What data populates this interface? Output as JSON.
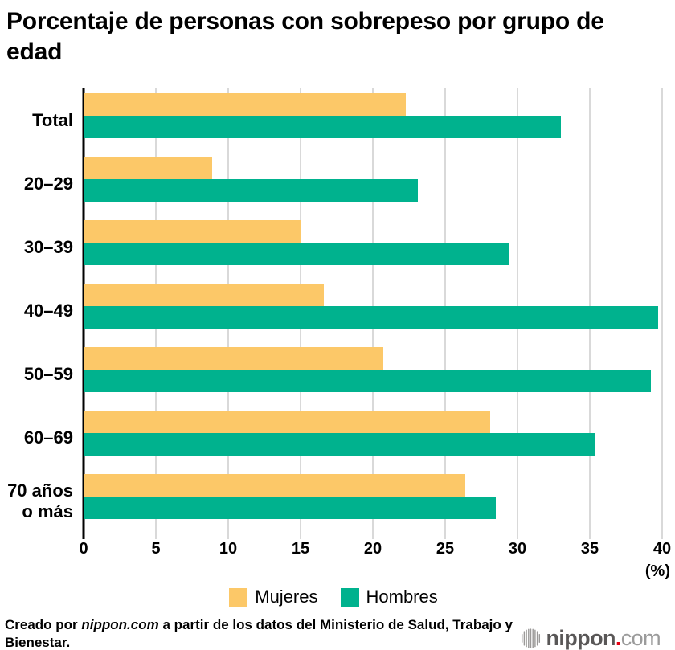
{
  "title": "Porcentaje de personas con sobrepeso por grupo de edad",
  "chart_data": {
    "type": "bar",
    "orientation": "horizontal",
    "title": "Porcentaje de personas con sobrepeso por grupo de edad",
    "categories": [
      "Total",
      "20–29",
      "30–39",
      "40–49",
      "50–59",
      "60–69",
      "70 años\no más"
    ],
    "series": [
      {
        "name": "Mujeres",
        "color": "#fcc868",
        "values": [
          22.3,
          8.9,
          15.0,
          16.6,
          20.7,
          28.1,
          26.4
        ]
      },
      {
        "name": "Hombres",
        "color": "#00b28e",
        "values": [
          33.0,
          23.1,
          29.4,
          39.7,
          39.2,
          35.4,
          28.5
        ]
      }
    ],
    "xlim": [
      0,
      40
    ],
    "ticks": [
      0,
      5,
      10,
      15,
      20,
      25,
      30,
      35,
      40
    ],
    "axis_unit_label": "(%)",
    "xlabel": "",
    "ylabel": "",
    "grid": true,
    "gridline_color": "#d9d9d9",
    "axis_color": "#000000",
    "legend_position": "bottom"
  },
  "footer": {
    "credit_prefix": "Creado por ",
    "credit_source": "nippon.com",
    "credit_suffix": " a partir de los datos del Ministerio de Salud, Trabajo y Bienestar.",
    "logo": {
      "text_main": "nippon",
      "text_dot": ".",
      "text_tld": "com",
      "main_color": "#595757",
      "dot_color": "#e60012",
      "tld_color": "#9b9b9b",
      "icon_color": "#9b9998"
    }
  }
}
